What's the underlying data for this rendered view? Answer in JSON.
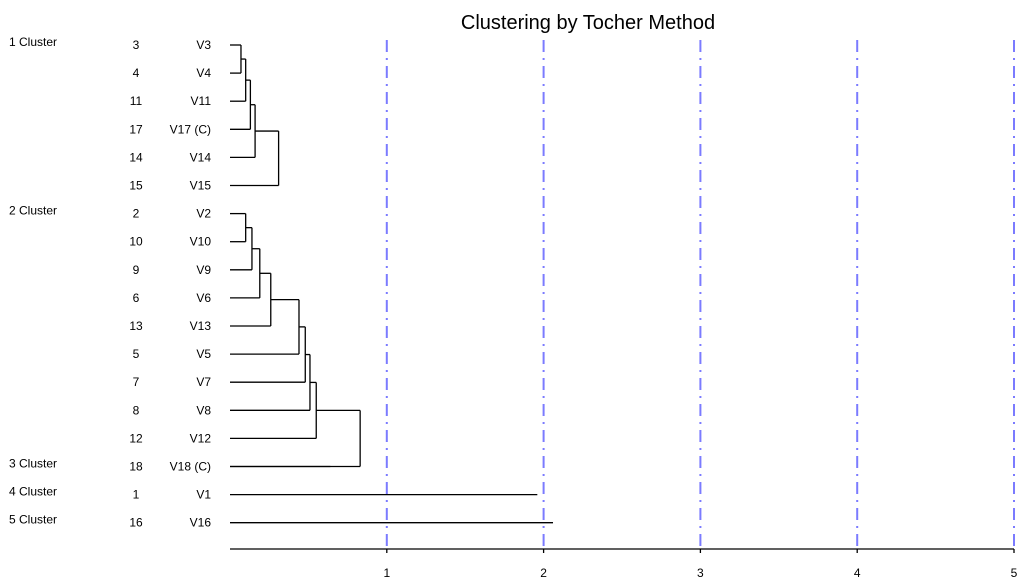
{
  "chart_data": {
    "type": "dendrogram",
    "title": "Clustering by Tocher Method",
    "xlabel": "",
    "ylabel": "",
    "xlim": [
      0,
      5
    ],
    "x_ticks": [
      "1",
      "2",
      "3",
      "4",
      "5"
    ],
    "reference_lines": {
      "x": [
        1,
        2,
        3,
        4,
        5
      ],
      "style": "dash-dot",
      "color": "#7b7bff"
    },
    "leaves": [
      {
        "number": "3",
        "label": "V3"
      },
      {
        "number": "4",
        "label": "V4"
      },
      {
        "number": "11",
        "label": "V11"
      },
      {
        "number": "17",
        "label": "V17 (C)"
      },
      {
        "number": "14",
        "label": "V14"
      },
      {
        "number": "15",
        "label": "V15"
      },
      {
        "number": "2",
        "label": "V2"
      },
      {
        "number": "10",
        "label": "V10"
      },
      {
        "number": "9",
        "label": "V9"
      },
      {
        "number": "6",
        "label": "V6"
      },
      {
        "number": "13",
        "label": "V13"
      },
      {
        "number": "5",
        "label": "V5"
      },
      {
        "number": "7",
        "label": "V7"
      },
      {
        "number": "8",
        "label": "V8"
      },
      {
        "number": "12",
        "label": "V12"
      },
      {
        "number": "18",
        "label": "V18 (C)"
      },
      {
        "number": "1",
        "label": "V1"
      },
      {
        "number": "16",
        "label": "V16"
      }
    ],
    "clusters": [
      {
        "label": "1 Cluster",
        "first_leaf": 0,
        "merges": [
          0.07,
          0.1,
          0.13,
          0.16,
          0.31
        ]
      },
      {
        "label": "2 Cluster",
        "first_leaf": 6,
        "merges": [
          0.1,
          0.14,
          0.19,
          0.26,
          0.44,
          0.48,
          0.51,
          0.55,
          0.83
        ]
      },
      {
        "label": "3 Cluster",
        "first_leaf": 15,
        "single": 0.64
      },
      {
        "label": "4 Cluster",
        "first_leaf": 16,
        "single": 1.96
      },
      {
        "label": "5 Cluster",
        "first_leaf": 17,
        "single": 2.06
      }
    ]
  }
}
